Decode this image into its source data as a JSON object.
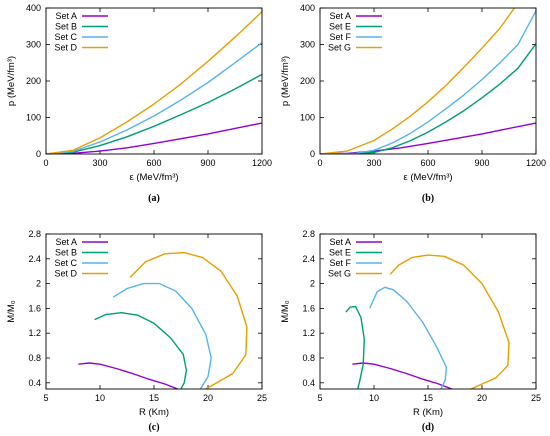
{
  "colors": {
    "purple": "#9400d3",
    "green": "#009e73",
    "sky": "#56b4e9",
    "orange": "#e69f00"
  },
  "chart_data": [
    {
      "type": "line",
      "caption": "(a)",
      "xlabel": "ε  (MeV/fm³)",
      "ylabel": "p  (MeV/fm³)",
      "xlim": [
        0,
        1200
      ],
      "ylim": [
        0,
        400
      ],
      "xticks": [
        0,
        300,
        600,
        900,
        1200
      ],
      "yticks": [
        0,
        100,
        200,
        300,
        400
      ],
      "legend_position": "top-left",
      "series": [
        {
          "name": "Set A",
          "color": "#9400d3",
          "x": [
            0,
            150,
            300,
            450,
            600,
            750,
            900,
            1050,
            1200
          ],
          "y": [
            0,
            2,
            8,
            17,
            29,
            42,
            55,
            70,
            85
          ]
        },
        {
          "name": "Set B",
          "color": "#009e73",
          "x": [
            0,
            150,
            300,
            450,
            600,
            750,
            900,
            1050,
            1200
          ],
          "y": [
            0,
            5,
            23,
            47,
            76,
            108,
            141,
            178,
            218
          ]
        },
        {
          "name": "Set C",
          "color": "#56b4e9",
          "x": [
            0,
            150,
            300,
            450,
            600,
            750,
            900,
            1050,
            1200
          ],
          "y": [
            0,
            7,
            33,
            66,
            104,
            148,
            196,
            250,
            305
          ]
        },
        {
          "name": "Set D",
          "color": "#e69f00",
          "x": [
            0,
            150,
            300,
            450,
            600,
            750,
            900,
            1050,
            1200
          ],
          "y": [
            0,
            10,
            44,
            88,
            137,
            192,
            254,
            320,
            390
          ]
        }
      ]
    },
    {
      "type": "line",
      "caption": "(b)",
      "xlabel": "ε  (MeV/fm³)",
      "ylabel": "p  (MeV/fm³)",
      "xlim": [
        0,
        1200
      ],
      "ylim": [
        0,
        400
      ],
      "xticks": [
        0,
        300,
        600,
        900,
        1200
      ],
      "yticks": [
        0,
        100,
        200,
        300,
        400
      ],
      "legend_position": "top-left",
      "series": [
        {
          "name": "Set A",
          "color": "#9400d3",
          "x": [
            0,
            150,
            300,
            450,
            600,
            750,
            900,
            1050,
            1200
          ],
          "y": [
            0,
            2,
            8,
            17,
            29,
            42,
            55,
            70,
            85
          ]
        },
        {
          "name": "Set E",
          "color": "#009e73",
          "x": [
            0,
            200,
            300,
            400,
            500,
            600,
            700,
            800,
            900,
            1000,
            1100,
            1200
          ],
          "y": [
            0,
            1,
            4,
            17,
            36,
            60,
            88,
            119,
            154,
            192,
            235,
            302
          ]
        },
        {
          "name": "Set F",
          "color": "#56b4e9",
          "x": [
            0,
            200,
            300,
            400,
            500,
            600,
            700,
            800,
            900,
            1000,
            1100,
            1200
          ],
          "y": [
            0,
            2,
            10,
            30,
            56,
            88,
            124,
            162,
            204,
            250,
            300,
            392
          ]
        },
        {
          "name": "Set G",
          "color": "#e69f00",
          "x": [
            0,
            150,
            300,
            400,
            500,
            600,
            700,
            800,
            900,
            1000,
            1080
          ],
          "y": [
            0,
            8,
            37,
            68,
            103,
            143,
            188,
            238,
            290,
            345,
            400
          ]
        }
      ]
    },
    {
      "type": "line",
      "caption": "(c)",
      "xlabel": "R  (Km)",
      "ylabel": "M/M₀",
      "xlim": [
        5,
        25
      ],
      "ylim": [
        0.3,
        2.8
      ],
      "xticks": [
        5,
        10,
        15,
        20,
        25
      ],
      "yticks": [
        0.4,
        0.8,
        1.2,
        1.6,
        2,
        2.4,
        2.8
      ],
      "legend_position": "top-left",
      "series": [
        {
          "name": "Set A",
          "color": "#9400d3",
          "x": [
            8.0,
            9.0,
            10.0,
            11.5,
            13.0,
            14.5,
            16.0,
            17.2
          ],
          "y": [
            0.7,
            0.72,
            0.7,
            0.63,
            0.55,
            0.46,
            0.38,
            0.3
          ]
        },
        {
          "name": "Set B",
          "color": "#009e73",
          "x": [
            9.5,
            10.5,
            12.0,
            13.5,
            15.0,
            16.5,
            17.7,
            18.0,
            17.8,
            17.5
          ],
          "y": [
            1.42,
            1.5,
            1.53,
            1.49,
            1.36,
            1.13,
            0.86,
            0.6,
            0.4,
            0.3
          ]
        },
        {
          "name": "Set C",
          "color": "#56b4e9",
          "x": [
            11.2,
            12.5,
            14.0,
            15.5,
            17.0,
            18.5,
            19.8,
            20.3,
            20.0,
            19.3
          ],
          "y": [
            1.78,
            1.92,
            2.0,
            2.0,
            1.88,
            1.6,
            1.18,
            0.8,
            0.5,
            0.3
          ]
        },
        {
          "name": "Set D",
          "color": "#e69f00",
          "x": [
            12.8,
            14.2,
            16.0,
            17.8,
            19.5,
            21.2,
            22.7,
            23.6,
            23.5,
            22.3,
            21.0,
            19.8
          ],
          "y": [
            2.1,
            2.35,
            2.48,
            2.5,
            2.42,
            2.2,
            1.8,
            1.3,
            0.85,
            0.55,
            0.42,
            0.3
          ]
        }
      ]
    },
    {
      "type": "line",
      "caption": "(d)",
      "xlabel": "R  (Km)",
      "ylabel": "M/M₀",
      "xlim": [
        5,
        25
      ],
      "ylim": [
        0.3,
        2.8
      ],
      "xticks": [
        5,
        10,
        15,
        20,
        25
      ],
      "yticks": [
        0.4,
        0.8,
        1.2,
        1.6,
        2,
        2.4,
        2.8
      ],
      "legend_position": "top-left",
      "series": [
        {
          "name": "Set A",
          "color": "#9400d3",
          "x": [
            8.0,
            9.0,
            10.0,
            11.5,
            13.0,
            14.5,
            16.0,
            17.2
          ],
          "y": [
            0.7,
            0.72,
            0.7,
            0.63,
            0.55,
            0.46,
            0.38,
            0.3
          ]
        },
        {
          "name": "Set E",
          "color": "#009e73",
          "x": [
            7.4,
            7.8,
            8.3,
            8.8,
            9.1,
            9.0,
            8.7,
            8.5
          ],
          "y": [
            1.54,
            1.62,
            1.63,
            1.45,
            1.1,
            0.7,
            0.45,
            0.3
          ]
        },
        {
          "name": "Set F",
          "color": "#56b4e9",
          "x": [
            9.6,
            10.3,
            11.0,
            11.8,
            13.0,
            14.5,
            15.8,
            16.7,
            16.6,
            16.2
          ],
          "y": [
            1.6,
            1.87,
            1.94,
            1.9,
            1.72,
            1.38,
            0.98,
            0.65,
            0.45,
            0.3
          ]
        },
        {
          "name": "Set G",
          "color": "#e69f00",
          "x": [
            11.5,
            12.3,
            13.5,
            15.0,
            16.5,
            18.3,
            20.0,
            21.5,
            22.5,
            22.4,
            21.3,
            20.0,
            19.0
          ],
          "y": [
            2.15,
            2.3,
            2.42,
            2.46,
            2.44,
            2.3,
            2.0,
            1.55,
            1.05,
            0.68,
            0.48,
            0.38,
            0.3
          ]
        }
      ]
    }
  ]
}
